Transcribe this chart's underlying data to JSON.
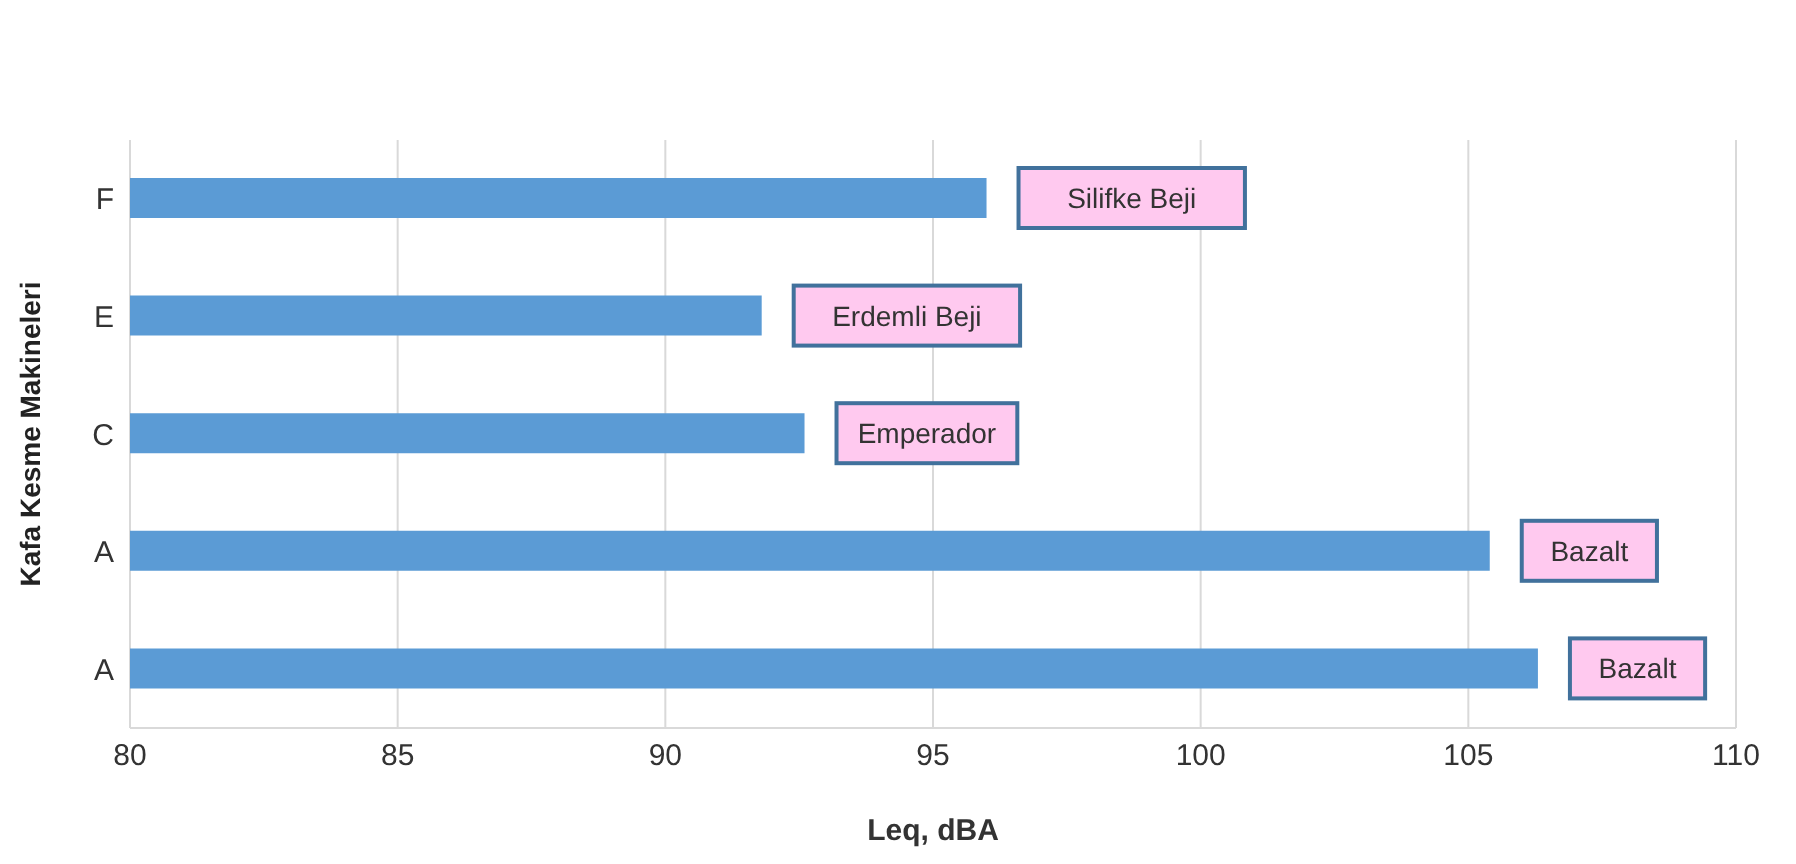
{
  "chart_data": {
    "type": "bar",
    "orientation": "horizontal",
    "xlabel": "Leq, dBA",
    "ylabel": "Kafa Kesme Makineleri",
    "categories": [
      "F",
      "E",
      "C",
      "A",
      "A"
    ],
    "values": [
      96.0,
      91.8,
      92.6,
      105.4,
      106.3
    ],
    "value_labels": [
      "Silifke Beji",
      "Erdemli Beji",
      "Emperador",
      "Bazalt",
      "Bazalt"
    ],
    "color": "#5b9bd5",
    "xlim": [
      80,
      110
    ],
    "xticks": [
      80,
      85,
      90,
      95,
      100,
      105,
      110
    ],
    "grid": "x"
  }
}
